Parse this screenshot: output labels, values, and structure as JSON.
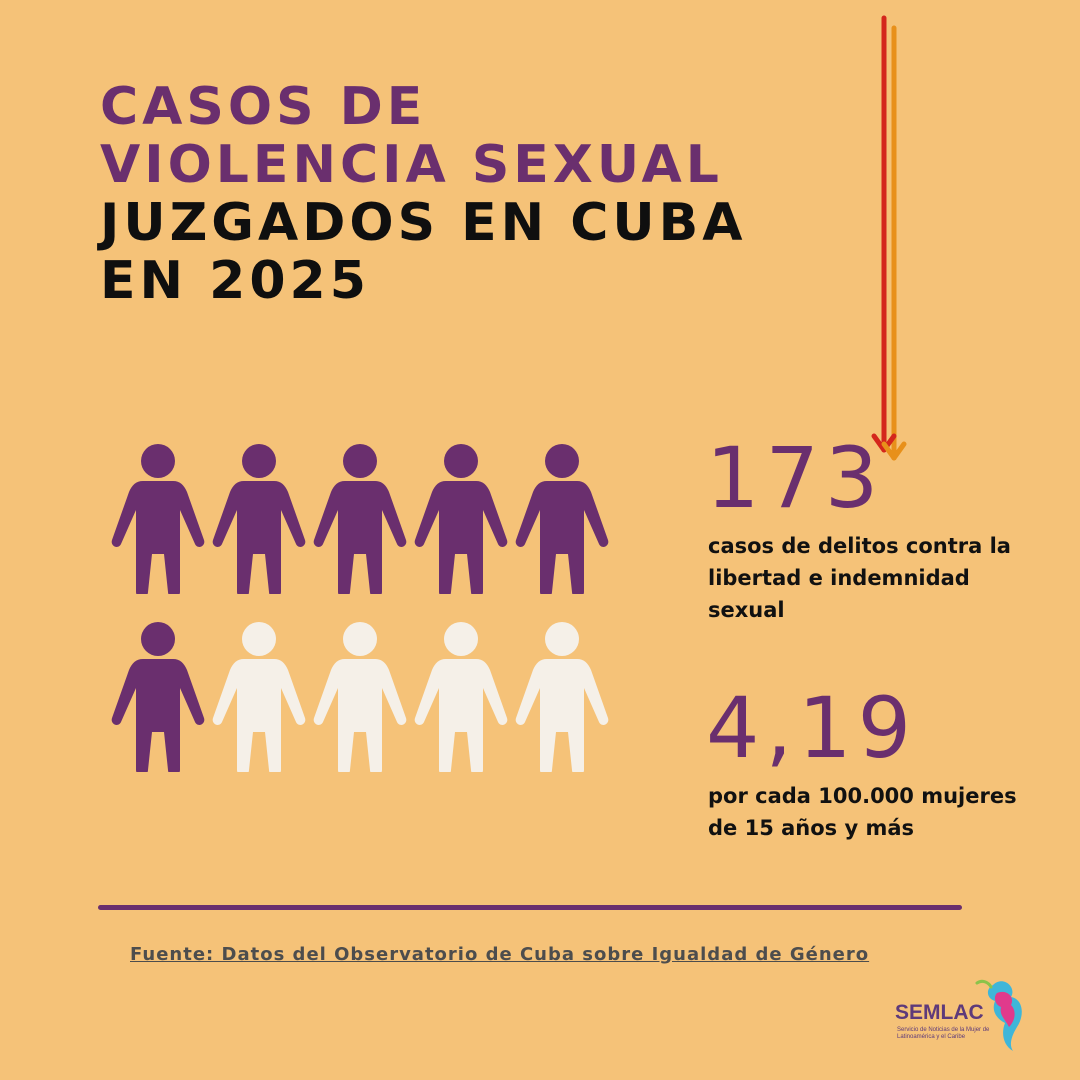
{
  "title": {
    "line1": "CASOS DE",
    "line2": "VIOLENCIA SEXUAL",
    "line3": "JUZGADOS EN CUBA",
    "line4": "EN 2025"
  },
  "figures": {
    "total": 10,
    "highlighted": 6,
    "highlight_color": "#6a2f6e",
    "muted_color": "#f5f0e8"
  },
  "stats": [
    {
      "value": "173",
      "text": "casos de delitos contra la libertad e indemnidad sexual"
    },
    {
      "value": "4,19",
      "text": "por cada 100.000 mujeres de 15 años y más"
    }
  ],
  "source": "Fuente: Datos del Observatorio de Cuba sobre Igualdad de Género",
  "logo": {
    "name": "SEMLAC",
    "subtitle": "Servicio de Noticias de la Mujer de Latinoamérica y el Caribe"
  },
  "colors": {
    "background": "#f5c278",
    "purple": "#6a2f6e",
    "arrow_red": "#d4261c",
    "arrow_orange": "#e8901a"
  }
}
